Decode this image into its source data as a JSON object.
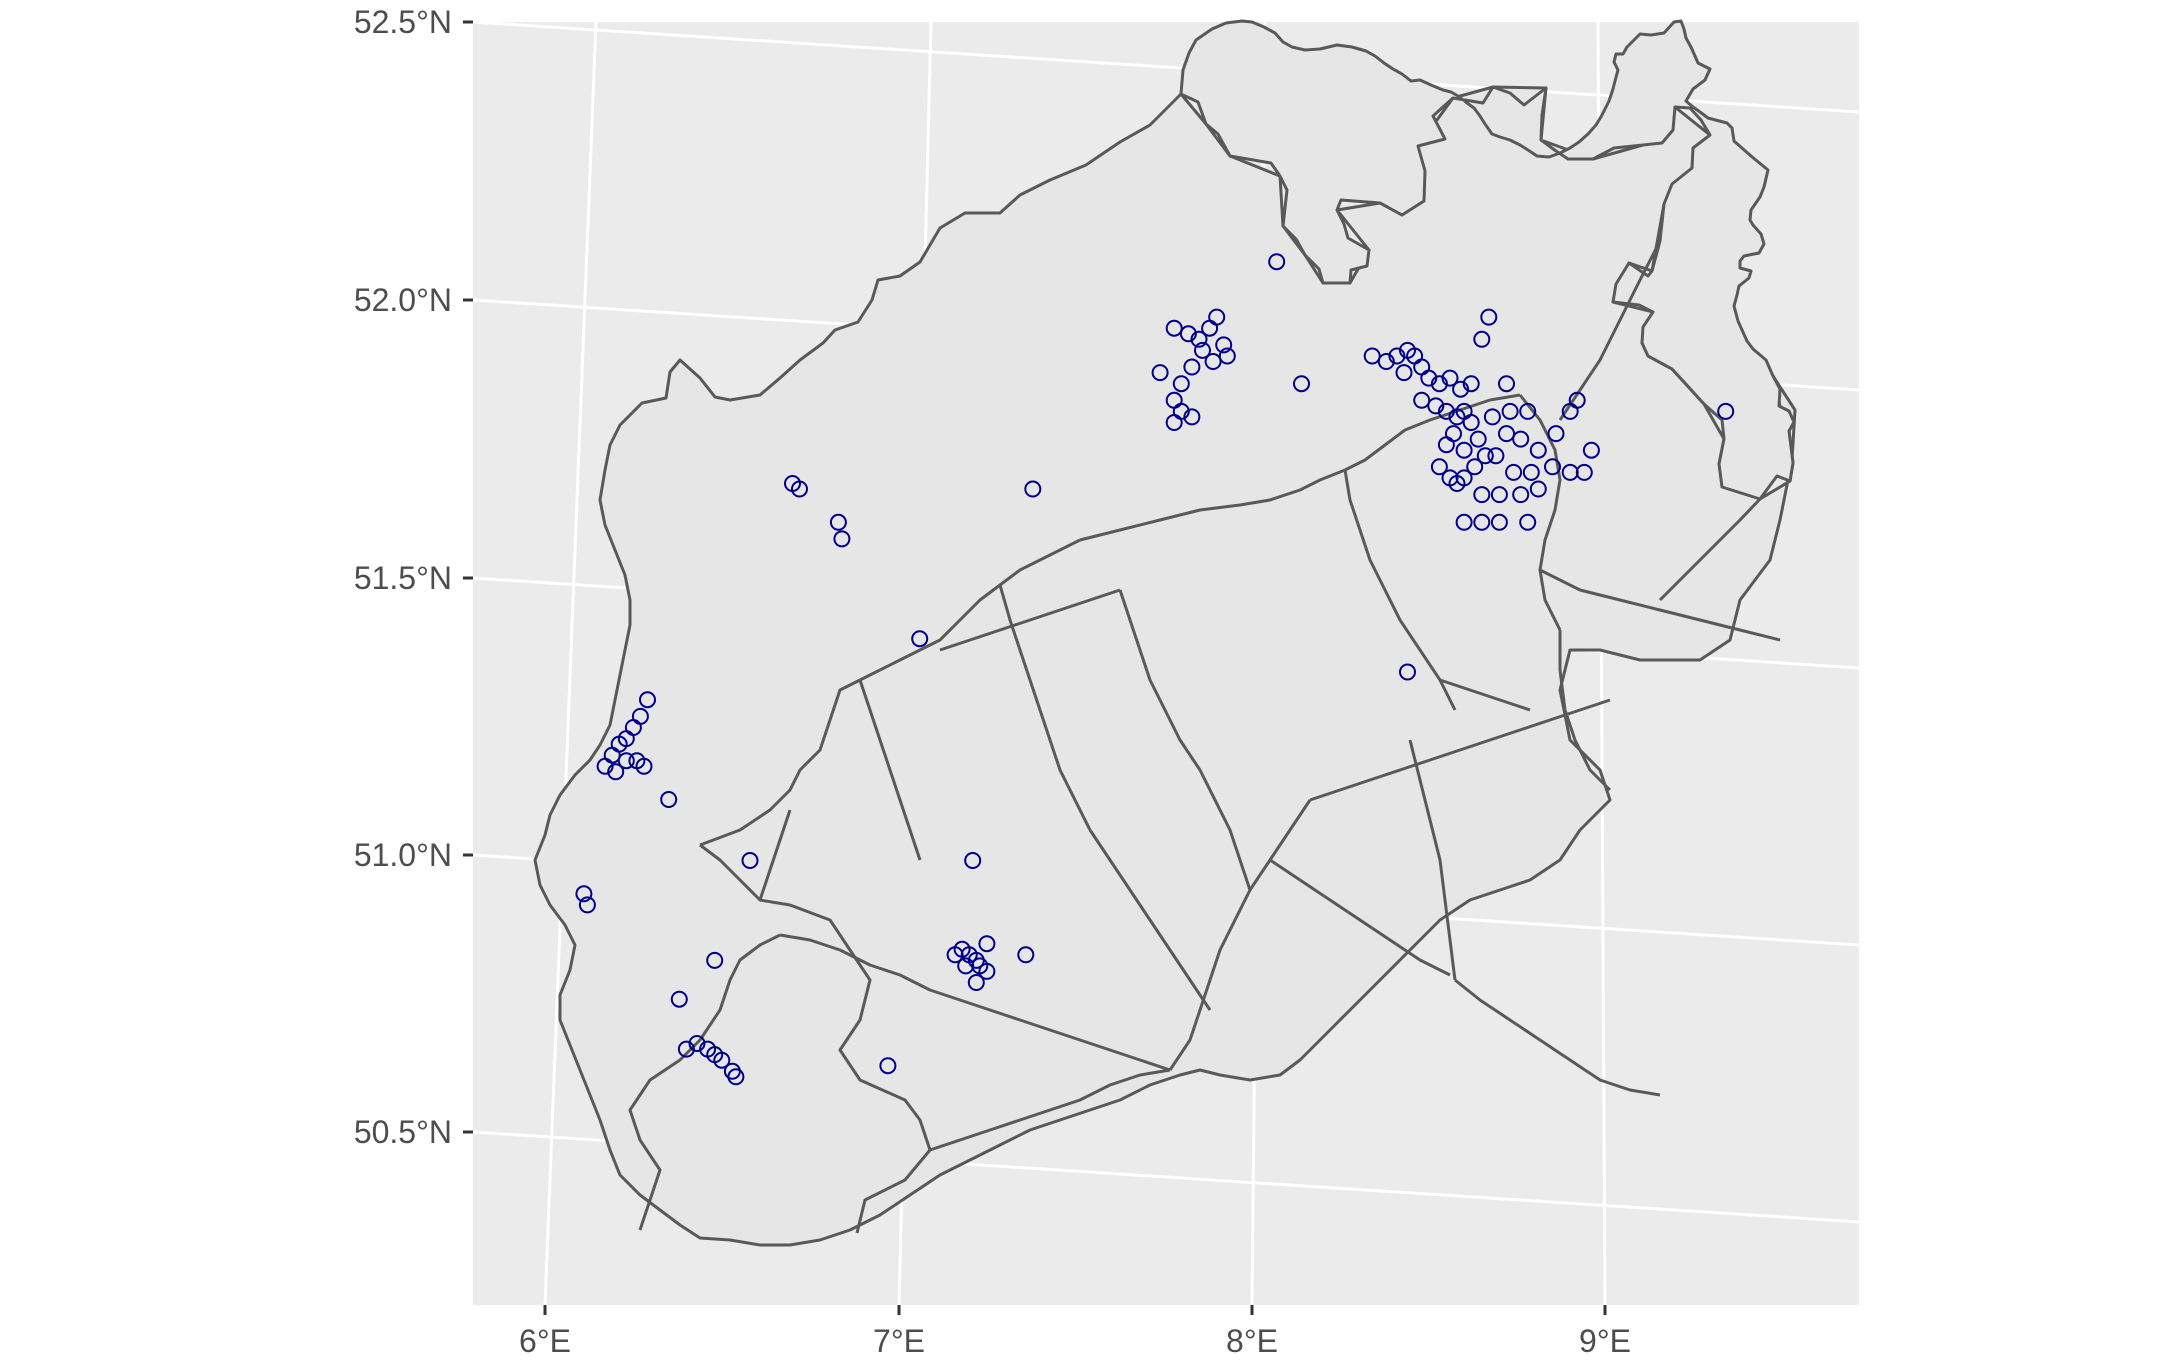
{
  "chart_data": {
    "type": "map",
    "region_fill": "#e6e6e6",
    "border_color": "#595959",
    "panel_background": "#ebebeb",
    "point_color": "#00008b",
    "point_shape": "open-circle",
    "grid": true,
    "y_axis": {
      "ticks": [
        52.5,
        52.0,
        51.5,
        51.0,
        50.5
      ],
      "labels": [
        "52.5°N",
        "52.0°N",
        "51.5°N",
        "51.0°N",
        "50.5°N"
      ]
    },
    "x_axis": {
      "ticks": [
        6,
        7,
        8,
        9
      ],
      "labels": [
        "6°E",
        "7°E",
        "8°E",
        "9°E"
      ]
    },
    "points": [
      {
        "lon": 8.07,
        "lat": 52.07
      },
      {
        "lon": 7.78,
        "lat": 51.95
      },
      {
        "lon": 7.82,
        "lat": 51.94
      },
      {
        "lon": 7.85,
        "lat": 51.93
      },
      {
        "lon": 7.88,
        "lat": 51.95
      },
      {
        "lon": 7.9,
        "lat": 51.97
      },
      {
        "lon": 7.92,
        "lat": 51.92
      },
      {
        "lon": 7.86,
        "lat": 51.91
      },
      {
        "lon": 7.89,
        "lat": 51.89
      },
      {
        "lon": 7.93,
        "lat": 51.9
      },
      {
        "lon": 7.83,
        "lat": 51.88
      },
      {
        "lon": 7.74,
        "lat": 51.87
      },
      {
        "lon": 7.8,
        "lat": 51.85
      },
      {
        "lon": 7.78,
        "lat": 51.82
      },
      {
        "lon": 7.8,
        "lat": 51.8
      },
      {
        "lon": 7.83,
        "lat": 51.79
      },
      {
        "lon": 7.78,
        "lat": 51.78
      },
      {
        "lon": 8.14,
        "lat": 51.85
      },
      {
        "lon": 8.34,
        "lat": 51.9
      },
      {
        "lon": 8.38,
        "lat": 51.89
      },
      {
        "lon": 8.41,
        "lat": 51.9
      },
      {
        "lon": 8.44,
        "lat": 51.91
      },
      {
        "lon": 8.46,
        "lat": 51.9
      },
      {
        "lon": 8.48,
        "lat": 51.88
      },
      {
        "lon": 8.43,
        "lat": 51.87
      },
      {
        "lon": 8.5,
        "lat": 51.86
      },
      {
        "lon": 8.53,
        "lat": 51.85
      },
      {
        "lon": 8.56,
        "lat": 51.86
      },
      {
        "lon": 8.59,
        "lat": 51.84
      },
      {
        "lon": 8.62,
        "lat": 51.85
      },
      {
        "lon": 8.65,
        "lat": 51.93
      },
      {
        "lon": 8.67,
        "lat": 51.97
      },
      {
        "lon": 8.72,
        "lat": 51.85
      },
      {
        "lon": 8.48,
        "lat": 51.82
      },
      {
        "lon": 8.52,
        "lat": 51.81
      },
      {
        "lon": 8.55,
        "lat": 51.8
      },
      {
        "lon": 8.58,
        "lat": 51.79
      },
      {
        "lon": 8.6,
        "lat": 51.8
      },
      {
        "lon": 8.62,
        "lat": 51.78
      },
      {
        "lon": 8.57,
        "lat": 51.76
      },
      {
        "lon": 8.55,
        "lat": 51.74
      },
      {
        "lon": 8.6,
        "lat": 51.73
      },
      {
        "lon": 8.64,
        "lat": 51.75
      },
      {
        "lon": 8.66,
        "lat": 51.72
      },
      {
        "lon": 8.53,
        "lat": 51.7
      },
      {
        "lon": 8.56,
        "lat": 51.68
      },
      {
        "lon": 8.58,
        "lat": 51.67
      },
      {
        "lon": 8.6,
        "lat": 51.68
      },
      {
        "lon": 8.63,
        "lat": 51.7
      },
      {
        "lon": 8.68,
        "lat": 51.79
      },
      {
        "lon": 8.73,
        "lat": 51.8
      },
      {
        "lon": 8.78,
        "lat": 51.8
      },
      {
        "lon": 8.72,
        "lat": 51.76
      },
      {
        "lon": 8.76,
        "lat": 51.75
      },
      {
        "lon": 8.81,
        "lat": 51.73
      },
      {
        "lon": 8.86,
        "lat": 51.76
      },
      {
        "lon": 8.9,
        "lat": 51.8
      },
      {
        "lon": 8.92,
        "lat": 51.82
      },
      {
        "lon": 8.69,
        "lat": 51.72
      },
      {
        "lon": 8.74,
        "lat": 51.69
      },
      {
        "lon": 8.79,
        "lat": 51.69
      },
      {
        "lon": 8.85,
        "lat": 51.7
      },
      {
        "lon": 8.9,
        "lat": 51.69
      },
      {
        "lon": 8.94,
        "lat": 51.69
      },
      {
        "lon": 8.96,
        "lat": 51.73
      },
      {
        "lon": 8.65,
        "lat": 51.65
      },
      {
        "lon": 8.7,
        "lat": 51.65
      },
      {
        "lon": 8.76,
        "lat": 51.65
      },
      {
        "lon": 8.81,
        "lat": 51.66
      },
      {
        "lon": 8.6,
        "lat": 51.6
      },
      {
        "lon": 8.65,
        "lat": 51.6
      },
      {
        "lon": 8.7,
        "lat": 51.6
      },
      {
        "lon": 8.78,
        "lat": 51.6
      },
      {
        "lon": 9.34,
        "lat": 51.8
      },
      {
        "lon": 8.44,
        "lat": 51.33
      },
      {
        "lon": 6.7,
        "lat": 51.67
      },
      {
        "lon": 6.72,
        "lat": 51.66
      },
      {
        "lon": 6.83,
        "lat": 51.6
      },
      {
        "lon": 6.84,
        "lat": 51.57
      },
      {
        "lon": 7.38,
        "lat": 51.66
      },
      {
        "lon": 7.06,
        "lat": 51.39
      },
      {
        "lon": 6.29,
        "lat": 51.28
      },
      {
        "lon": 6.27,
        "lat": 51.25
      },
      {
        "lon": 6.25,
        "lat": 51.23
      },
      {
        "lon": 6.23,
        "lat": 51.21
      },
      {
        "lon": 6.21,
        "lat": 51.2
      },
      {
        "lon": 6.19,
        "lat": 51.18
      },
      {
        "lon": 6.17,
        "lat": 51.16
      },
      {
        "lon": 6.2,
        "lat": 51.15
      },
      {
        "lon": 6.23,
        "lat": 51.17
      },
      {
        "lon": 6.26,
        "lat": 51.17
      },
      {
        "lon": 6.28,
        "lat": 51.16
      },
      {
        "lon": 6.35,
        "lat": 51.1
      },
      {
        "lon": 6.58,
        "lat": 50.99
      },
      {
        "lon": 6.11,
        "lat": 50.93
      },
      {
        "lon": 6.12,
        "lat": 50.91
      },
      {
        "lon": 6.48,
        "lat": 50.81
      },
      {
        "lon": 6.38,
        "lat": 50.74
      },
      {
        "lon": 6.4,
        "lat": 50.65
      },
      {
        "lon": 6.43,
        "lat": 50.66
      },
      {
        "lon": 6.46,
        "lat": 50.65
      },
      {
        "lon": 6.48,
        "lat": 50.64
      },
      {
        "lon": 6.5,
        "lat": 50.63
      },
      {
        "lon": 6.53,
        "lat": 50.61
      },
      {
        "lon": 6.54,
        "lat": 50.6
      },
      {
        "lon": 6.97,
        "lat": 50.62
      },
      {
        "lon": 7.21,
        "lat": 50.99
      },
      {
        "lon": 7.16,
        "lat": 50.82
      },
      {
        "lon": 7.18,
        "lat": 50.83
      },
      {
        "lon": 7.2,
        "lat": 50.82
      },
      {
        "lon": 7.22,
        "lat": 50.81
      },
      {
        "lon": 7.23,
        "lat": 50.8
      },
      {
        "lon": 7.25,
        "lat": 50.79
      },
      {
        "lon": 7.22,
        "lat": 50.77
      },
      {
        "lon": 7.19,
        "lat": 50.8
      },
      {
        "lon": 7.25,
        "lat": 50.84
      },
      {
        "lon": 7.36,
        "lat": 50.82
      }
    ]
  }
}
